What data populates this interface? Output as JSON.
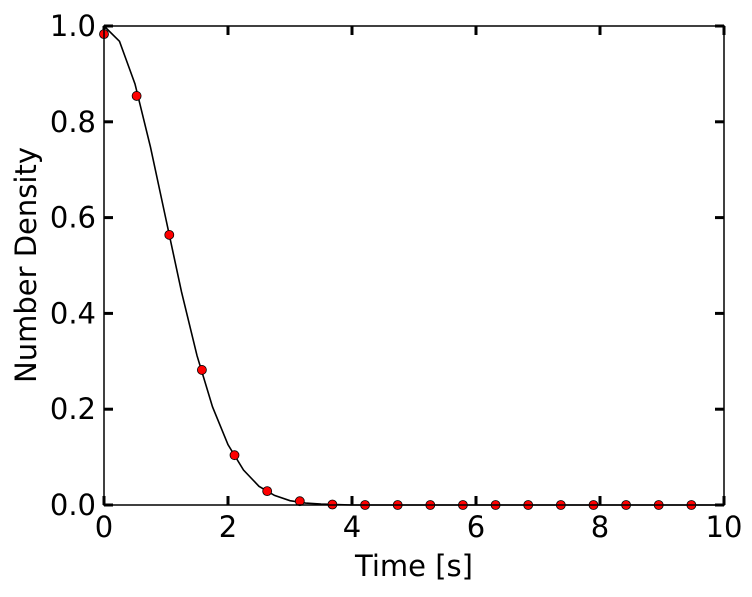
{
  "chart_data": {
    "type": "line",
    "xlabel": "Time [s]",
    "ylabel": "Number Density",
    "xlim": [
      0,
      10
    ],
    "ylim": [
      0,
      1
    ],
    "xticks": [
      0,
      2,
      4,
      6,
      8,
      10
    ],
    "yticks": [
      {
        "value": 0,
        "label": "0.0"
      },
      {
        "value": 0.2,
        "label": "0.2"
      },
      {
        "value": 0.4,
        "label": "0.4"
      },
      {
        "value": 0.6,
        "label": "0.6"
      },
      {
        "value": 0.8,
        "label": "0.8"
      },
      {
        "value": 1,
        "label": "1.0"
      }
    ],
    "grid": false,
    "series": [
      {
        "type": "line",
        "color": "#000000",
        "x": [
          0,
          0.25,
          0.5,
          0.75,
          1.0,
          1.25,
          1.5,
          1.75,
          2.0,
          2.25,
          2.5,
          2.75,
          3.0,
          3.25,
          3.5,
          3.75,
          4.0,
          10
        ],
        "values": [
          1,
          0.968,
          0.879,
          0.747,
          0.596,
          0.445,
          0.312,
          0.205,
          0.126,
          0.073,
          0.039,
          0.02,
          0.009,
          0.004,
          0.002,
          0.001,
          0,
          0
        ]
      },
      {
        "type": "scatter",
        "color": "#ff0000",
        "x": [
          0,
          0.526,
          1.053,
          1.579,
          2.105,
          2.632,
          3.158,
          3.684,
          4.211,
          4.737,
          5.263,
          5.789,
          6.316,
          6.842,
          7.368,
          7.895,
          8.421,
          8.947,
          9.474
        ],
        "values": [
          0.983,
          0.854,
          0.564,
          0.282,
          0.104,
          0.029,
          0.008,
          0.001,
          0,
          0,
          0,
          0,
          0,
          0,
          0,
          0,
          0,
          0,
          0
        ]
      }
    ]
  }
}
